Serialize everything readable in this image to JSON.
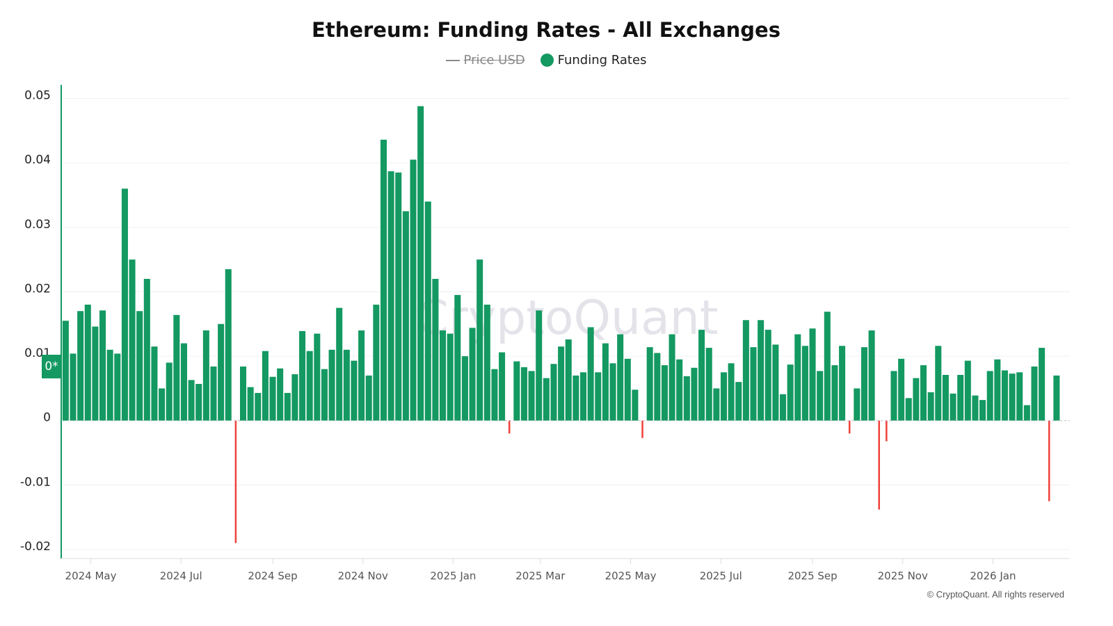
{
  "chart_data": {
    "type": "bar",
    "title": "Ethereum: Funding Rates - All Exchanges",
    "legend": [
      {
        "name": "Price USD",
        "hidden": true,
        "marker": "line"
      },
      {
        "name": "Funding Rates",
        "hidden": false,
        "marker": "dot"
      }
    ],
    "legend_placement": "top-center",
    "colors": {
      "positive": "#139961",
      "negative": "#f0413a",
      "axis": "#139961",
      "legend_price": "#888888"
    },
    "zero_badge": "0*",
    "watermark": "CryptoQuant",
    "copyright": "© CryptoQuant. All rights reserved",
    "grid": true,
    "ylim": [
      -0.0214,
      0.052
    ],
    "xlim": [
      "2024-04-11",
      "2026-02-22"
    ],
    "y_ticks": [
      {
        "value": 0.05,
        "label": "0.05"
      },
      {
        "value": 0.04,
        "label": "0.04"
      },
      {
        "value": 0.03,
        "label": "0.03"
      },
      {
        "value": 0.02,
        "label": "0.02"
      },
      {
        "value": 0.01,
        "label": "0.01"
      },
      {
        "value": 0,
        "label": "0"
      },
      {
        "value": -0.01,
        "label": "-0.01"
      },
      {
        "value": -0.02,
        "label": "-0.02"
      }
    ],
    "x_ticks": [
      {
        "date": "2024-05-01",
        "label": "2024 May"
      },
      {
        "date": "2024-07-01",
        "label": "2024 Jul"
      },
      {
        "date": "2024-09-01",
        "label": "2024 Sep"
      },
      {
        "date": "2024-11-01",
        "label": "2024 Nov"
      },
      {
        "date": "2025-01-01",
        "label": "2025 Jan"
      },
      {
        "date": "2025-03-01",
        "label": "2025 Mar"
      },
      {
        "date": "2025-05-01",
        "label": "2025 May"
      },
      {
        "date": "2025-07-01",
        "label": "2025 Jul"
      },
      {
        "date": "2025-09-01",
        "label": "2025 Sep"
      },
      {
        "date": "2025-11-01",
        "label": "2025 Nov"
      },
      {
        "date": "2026-01-01",
        "label": "2026 Jan"
      }
    ],
    "x": [
      "2024-04-14",
      "2024-04-19",
      "2024-04-24",
      "2024-04-29",
      "2024-05-04",
      "2024-05-09",
      "2024-05-14",
      "2024-05-19",
      "2024-05-24",
      "2024-05-29",
      "2024-06-03",
      "2024-06-08",
      "2024-06-13",
      "2024-06-18",
      "2024-06-23",
      "2024-06-28",
      "2024-07-03",
      "2024-07-08",
      "2024-07-13",
      "2024-07-18",
      "2024-07-23",
      "2024-07-28",
      "2024-08-02",
      "2024-08-07",
      "2024-08-12",
      "2024-08-17",
      "2024-08-22",
      "2024-08-27",
      "2024-09-01",
      "2024-09-06",
      "2024-09-11",
      "2024-09-16",
      "2024-09-21",
      "2024-09-26",
      "2024-10-01",
      "2024-10-06",
      "2024-10-11",
      "2024-10-16",
      "2024-10-21",
      "2024-10-26",
      "2024-10-31",
      "2024-11-05",
      "2024-11-10",
      "2024-11-15",
      "2024-11-20",
      "2024-11-25",
      "2024-11-30",
      "2024-12-05",
      "2024-12-10",
      "2024-12-15",
      "2024-12-20",
      "2024-12-25",
      "2024-12-30",
      "2025-01-04",
      "2025-01-09",
      "2025-01-14",
      "2025-01-19",
      "2025-01-24",
      "2025-01-29",
      "2025-02-03",
      "2025-02-08",
      "2025-02-13",
      "2025-02-18",
      "2025-02-23",
      "2025-02-28",
      "2025-03-05",
      "2025-03-10",
      "2025-03-15",
      "2025-03-20",
      "2025-03-25",
      "2025-03-30",
      "2025-04-04",
      "2025-04-09",
      "2025-04-14",
      "2025-04-19",
      "2025-04-24",
      "2025-04-29",
      "2025-05-04",
      "2025-05-09",
      "2025-05-14",
      "2025-05-19",
      "2025-05-24",
      "2025-05-29",
      "2025-06-03",
      "2025-06-08",
      "2025-06-13",
      "2025-06-18",
      "2025-06-23",
      "2025-06-28",
      "2025-07-03",
      "2025-07-08",
      "2025-07-13",
      "2025-07-18",
      "2025-07-23",
      "2025-07-28",
      "2025-08-02",
      "2025-08-07",
      "2025-08-12",
      "2025-08-17",
      "2025-08-22",
      "2025-08-27",
      "2025-09-01",
      "2025-09-06",
      "2025-09-11",
      "2025-09-16",
      "2025-09-21",
      "2025-09-26",
      "2025-10-01",
      "2025-10-06",
      "2025-10-11",
      "2025-10-16",
      "2025-10-21",
      "2025-10-26",
      "2025-10-31",
      "2025-11-05",
      "2025-11-10",
      "2025-11-15",
      "2025-11-20",
      "2025-11-25",
      "2025-11-30",
      "2025-12-05",
      "2025-12-10",
      "2025-12-15",
      "2025-12-20",
      "2025-12-25",
      "2025-12-30",
      "2026-01-04",
      "2026-01-09",
      "2026-01-14",
      "2026-01-19",
      "2026-01-24",
      "2026-01-29",
      "2026-02-03",
      "2026-02-08",
      "2026-02-13"
    ],
    "series": [
      {
        "name": "Funding Rates",
        "values": [
          0.0155,
          0.0104,
          0.017,
          0.018,
          0.0146,
          0.0171,
          0.011,
          0.0104,
          0.036,
          0.025,
          0.017,
          0.022,
          0.0115,
          0.005,
          0.009,
          0.0164,
          0.012,
          0.0063,
          0.0057,
          0.014,
          0.0084,
          0.015,
          0.0235,
          -0.019,
          0.0084,
          0.0052,
          0.0043,
          0.0108,
          0.0068,
          0.0081,
          0.0043,
          0.0072,
          0.0139,
          0.0108,
          0.0135,
          0.008,
          0.011,
          0.0175,
          0.011,
          0.0093,
          0.014,
          0.007,
          0.018,
          0.0436,
          0.0387,
          0.0385,
          0.0325,
          0.0405,
          0.0488,
          0.034,
          0.022,
          0.014,
          0.0135,
          0.0195,
          0.01,
          0.0144,
          0.025,
          0.018,
          0.008,
          0.0106,
          -0.002,
          0.0092,
          0.0083,
          0.0077,
          0.0171,
          0.0066,
          0.0088,
          0.0115,
          0.0126,
          0.007,
          0.0075,
          0.0145,
          0.0075,
          0.012,
          0.0089,
          0.0134,
          0.0096,
          0.0048,
          -0.0027,
          0.0114,
          0.0105,
          0.0086,
          0.0134,
          0.0095,
          0.0069,
          0.0082,
          0.0141,
          0.0113,
          0.005,
          0.0075,
          0.0089,
          0.006,
          0.0156,
          0.0114,
          0.0156,
          0.0141,
          0.0118,
          0.0041,
          0.0087,
          0.0134,
          0.0116,
          0.0143,
          0.0077,
          0.0169,
          0.0086,
          0.0116,
          -0.002,
          0.005,
          0.0114,
          0.014,
          -0.0138,
          -0.0032,
          0.0077,
          0.0096,
          0.0035,
          0.0066,
          0.0086,
          0.0044,
          0.0116,
          0.0071,
          0.0042,
          0.0071,
          0.0093,
          0.0039,
          0.0032,
          0.0077,
          0.0095,
          0.0078,
          0.0073,
          0.0075,
          0.0024,
          0.0084,
          0.0113,
          -0.0125,
          0.007
        ]
      }
    ]
  }
}
